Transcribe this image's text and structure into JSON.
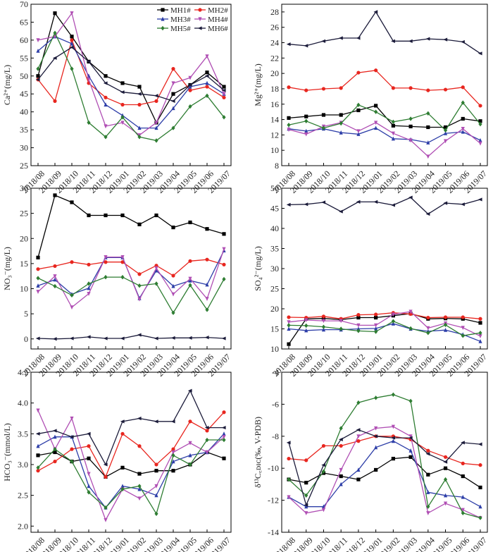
{
  "months": [
    "2018/08",
    "2018/09",
    "2018/10",
    "2018/11",
    "2018/12",
    "2019/01",
    "2019/02",
    "2019/03",
    "2019/04",
    "2019/05",
    "2019/06",
    "2019/07"
  ],
  "legend": [
    {
      "name": "MH1#",
      "color": "#000000",
      "marker": "square"
    },
    {
      "name": "MH2#",
      "color": "#e8261f",
      "marker": "circle"
    },
    {
      "name": "MH3#",
      "color": "#2d3ea8",
      "marker": "triangle-up"
    },
    {
      "name": "MH4#",
      "color": "#b04fb4",
      "marker": "triangle-down"
    },
    {
      "name": "MH5#",
      "color": "#2e7d32",
      "marker": "diamond"
    },
    {
      "name": "MH6#",
      "color": "#1b1b3a",
      "marker": "triangle-left"
    }
  ],
  "chart_data": [
    {
      "type": "line",
      "ylabel": "Ca²⁺(mg/L)",
      "ylim": [
        25,
        70
      ],
      "yticks": [
        25,
        30,
        35,
        40,
        45,
        50,
        55,
        60,
        65,
        70
      ],
      "grid": false,
      "legend_position": "top-right",
      "series": [
        {
          "name": "MH1#",
          "values": [
            50,
            67.5,
            61,
            54,
            50,
            48,
            47,
            37,
            45,
            47.5,
            51,
            47
          ]
        },
        {
          "name": "MH2#",
          "values": [
            49,
            43,
            60,
            48,
            44,
            42,
            42,
            43,
            52,
            46,
            47,
            44
          ]
        },
        {
          "name": "MH3#",
          "values": [
            57,
            61,
            59,
            50,
            42,
            39,
            35.5,
            35.5,
            41,
            47,
            48,
            45
          ]
        },
        {
          "name": "MH4#",
          "values": [
            60,
            61,
            67.5,
            49,
            36,
            37,
            33.5,
            37,
            48,
            49.5,
            55.5,
            45
          ]
        },
        {
          "name": "MH5#",
          "values": [
            52,
            62,
            52,
            37,
            33,
            38.5,
            33,
            32,
            35.5,
            41.5,
            44.5,
            38.5
          ]
        },
        {
          "name": "MH6#",
          "values": [
            49,
            55,
            58,
            54,
            48,
            45.5,
            45,
            44.5,
            43,
            47.5,
            50,
            46
          ]
        }
      ]
    },
    {
      "type": "line",
      "ylabel": "Mg²⁺(mg/L)",
      "ylim": [
        8,
        29
      ],
      "yticks": [
        8,
        10,
        12,
        14,
        16,
        18,
        20,
        22,
        24,
        26,
        28
      ],
      "grid": false,
      "series": [
        {
          "name": "MH1#",
          "values": [
            14.2,
            14.4,
            14.6,
            14.6,
            15.2,
            15.8,
            13.2,
            13.1,
            13.0,
            13.0,
            14.1,
            13.8
          ]
        },
        {
          "name": "MH2#",
          "values": [
            18.2,
            17.8,
            18.0,
            18.1,
            20.1,
            20.4,
            18.1,
            18.1,
            17.8,
            17.9,
            18.2,
            15.8
          ]
        },
        {
          "name": "MH3#",
          "values": [
            12.8,
            12.5,
            12.8,
            12.3,
            12.1,
            12.9,
            11.5,
            11.4,
            11.0,
            12.2,
            12.4,
            11.3
          ]
        },
        {
          "name": "MH4#",
          "values": [
            12.7,
            12.1,
            13.1,
            13.6,
            12.5,
            13.6,
            12.2,
            11.3,
            9.2,
            11.2,
            12.8,
            10.9
          ]
        },
        {
          "name": "MH5#",
          "values": [
            13.3,
            13.8,
            12.9,
            13.5,
            15.9,
            15.0,
            13.7,
            14.1,
            14.8,
            12.6,
            16.2,
            13.4
          ]
        },
        {
          "name": "MH6#",
          "values": [
            23.8,
            23.6,
            24.2,
            24.6,
            24.6,
            28.0,
            24.2,
            24.2,
            24.5,
            24.4,
            24.1,
            22.6
          ]
        }
      ]
    },
    {
      "type": "line",
      "ylabel": "NO₃⁻(mg/L)",
      "ylim": [
        -2,
        30
      ],
      "yticks": [
        0,
        5,
        10,
        15,
        20,
        25,
        30
      ],
      "grid": false,
      "series": [
        {
          "name": "MH1#",
          "values": [
            16.2,
            28.6,
            27.2,
            24.6,
            24.6,
            24.6,
            22.8,
            24.6,
            22.2,
            23.2,
            21.9,
            20.9
          ]
        },
        {
          "name": "MH2#",
          "values": [
            13.9,
            14.5,
            15.3,
            14.8,
            15.3,
            15.3,
            12.9,
            14.6,
            12.6,
            15.5,
            15.8,
            14.8
          ]
        },
        {
          "name": "MH3#",
          "values": [
            10.6,
            11.8,
            8.9,
            10.1,
            16.2,
            16.2,
            8.1,
            13.6,
            10.5,
            11.6,
            10.8,
            17.6
          ]
        },
        {
          "name": "MH4#",
          "values": [
            9.4,
            12.5,
            6.3,
            9.0,
            16.3,
            16.3,
            7.9,
            14.1,
            8.9,
            12.0,
            8.0,
            17.9
          ]
        },
        {
          "name": "MH5#",
          "values": [
            12.1,
            10.5,
            8.7,
            11.0,
            12.3,
            12.3,
            10.6,
            11.0,
            5.2,
            10.7,
            5.8,
            11.9
          ]
        },
        {
          "name": "MH6#",
          "values": [
            0.1,
            0.0,
            0.1,
            0.4,
            0.1,
            0.1,
            0.8,
            0.1,
            0.2,
            0.2,
            0.3,
            0.1
          ]
        }
      ]
    },
    {
      "type": "line",
      "ylabel": "SO₄²⁻(mg/L)",
      "ylim": [
        10,
        50
      ],
      "yticks": [
        10,
        15,
        20,
        25,
        30,
        35,
        40,
        45,
        50
      ],
      "grid": false,
      "series": [
        {
          "name": "MH1#",
          "values": [
            11.2,
            17.5,
            17.6,
            17.3,
            17.8,
            17.8,
            18.3,
            18.8,
            17.5,
            17.6,
            17.5,
            16.5
          ]
        },
        {
          "name": "MH2#",
          "values": [
            17.9,
            17.8,
            18.1,
            17.5,
            18.5,
            18.6,
            19.0,
            18.7,
            17.8,
            17.9,
            17.9,
            17.5
          ]
        },
        {
          "name": "MH3#",
          "values": [
            15.0,
            14.6,
            14.8,
            14.8,
            15.0,
            15.1,
            16.3,
            15.0,
            14.4,
            14.7,
            13.6,
            11.9
          ]
        },
        {
          "name": "MH4#",
          "values": [
            16.7,
            17.2,
            17.0,
            17.0,
            15.9,
            15.9,
            18.6,
            19.3,
            15.2,
            16.4,
            15.3,
            13.2
          ]
        },
        {
          "name": "MH5#",
          "values": [
            15.9,
            15.8,
            15.5,
            15.0,
            14.5,
            14.3,
            16.9,
            15.1,
            14.0,
            16.0,
            13.3,
            14.0
          ]
        },
        {
          "name": "MH6#",
          "values": [
            45.9,
            46.0,
            46.5,
            44.2,
            46.6,
            46.6,
            45.8,
            47.7,
            43.6,
            46.3,
            46.0,
            47.2
          ]
        }
      ]
    },
    {
      "type": "line",
      "ylabel": "HCO₃⁻(mmol/L)",
      "ylim": [
        1.9,
        4.5
      ],
      "yticks": [
        2.0,
        2.5,
        3.0,
        3.5,
        4.0,
        4.5
      ],
      "grid": false,
      "series": [
        {
          "name": "MH1#",
          "values": [
            3.15,
            3.2,
            3.05,
            3.1,
            2.8,
            2.95,
            2.85,
            2.9,
            2.9,
            3.0,
            3.2,
            3.1
          ]
        },
        {
          "name": "MH2#",
          "values": [
            2.9,
            3.05,
            3.25,
            3.3,
            2.8,
            3.5,
            3.3,
            3.0,
            3.25,
            3.7,
            3.55,
            3.85
          ]
        },
        {
          "name": "MH3#",
          "values": [
            3.3,
            3.45,
            3.45,
            2.65,
            2.3,
            2.65,
            2.6,
            2.5,
            3.05,
            3.15,
            3.2,
            3.5
          ]
        },
        {
          "name": "MH4#",
          "values": [
            3.88,
            3.25,
            3.75,
            2.85,
            2.1,
            2.6,
            2.45,
            2.65,
            3.2,
            3.35,
            3.2,
            3.45
          ]
        },
        {
          "name": "MH5#",
          "values": [
            2.95,
            3.25,
            3.05,
            2.55,
            2.3,
            2.6,
            2.65,
            2.2,
            3.15,
            3.0,
            3.4,
            3.4
          ]
        },
        {
          "name": "MH6#",
          "values": [
            3.5,
            3.55,
            3.45,
            3.5,
            3.0,
            3.7,
            3.75,
            3.7,
            3.7,
            4.2,
            3.6,
            3.6
          ]
        }
      ]
    },
    {
      "type": "line",
      "ylabel": "δ¹³C꜀ᴅɪᴄ(‰, V-PDB)",
      "ylim": [
        -14,
        -4
      ],
      "yticks": [
        -14,
        -12,
        -10,
        -8,
        -6,
        -4
      ],
      "grid": false,
      "series": [
        {
          "name": "MH1#",
          "values": [
            -10.7,
            -10.9,
            -10.3,
            -10.5,
            -10.7,
            -10.1,
            -9.4,
            -9.3,
            -10.4,
            -10.0,
            -10.5,
            -11.2
          ]
        },
        {
          "name": "MH2#",
          "values": [
            -9.4,
            -9.5,
            -8.6,
            -8.6,
            -8.3,
            -8.0,
            -8.0,
            -8.2,
            -8.9,
            -9.3,
            -9.7,
            -9.8
          ]
        },
        {
          "name": "MH3#",
          "values": [
            -11.8,
            -12.4,
            -12.4,
            -11.0,
            -10.1,
            -8.7,
            -8.3,
            -8.9,
            -11.5,
            -11.7,
            -11.8,
            -12.4
          ]
        },
        {
          "name": "MH4#",
          "values": [
            -11.8,
            -12.8,
            -12.6,
            -10.1,
            -8.0,
            -7.5,
            -7.4,
            -8.0,
            -12.8,
            -12.2,
            -12.6,
            -13.1
          ]
        },
        {
          "name": "MH5#",
          "values": [
            -10.7,
            -11.7,
            -10.2,
            -7.5,
            -5.9,
            -5.6,
            -5.4,
            -5.8,
            -12.4,
            -10.7,
            -12.8,
            -13.1
          ]
        },
        {
          "name": "MH6#",
          "values": [
            -8.4,
            -12.3,
            -9.8,
            -8.2,
            -7.6,
            -8.0,
            -8.1,
            -8.1,
            -9.1,
            -9.6,
            -8.4,
            -8.5
          ]
        }
      ]
    }
  ]
}
